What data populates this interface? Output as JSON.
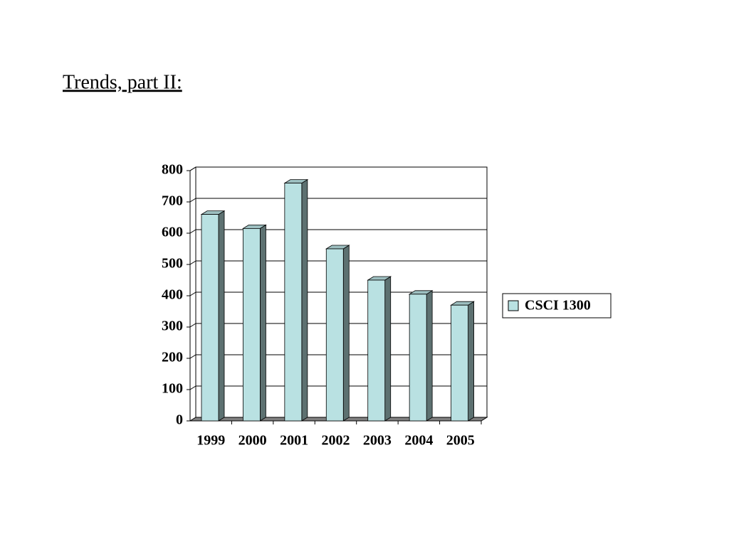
{
  "chart_data": {
    "type": "bar3d",
    "title": "Trends, part II:",
    "categories": [
      "1999",
      "2000",
      "2001",
      "2002",
      "2003",
      "2004",
      "2005"
    ],
    "series": [
      {
        "name": "CSCI 1300",
        "color": "#b9e1e2",
        "values": [
          660,
          615,
          760,
          550,
          450,
          405,
          370
        ]
      }
    ],
    "ylim": [
      0,
      800
    ],
    "yticks": [
      0,
      100,
      200,
      300,
      400,
      500,
      600,
      700,
      800
    ],
    "grid": true,
    "legend": "right"
  }
}
